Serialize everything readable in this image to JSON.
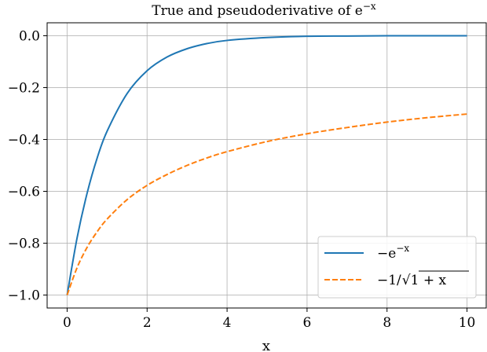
{
  "chart_data": {
    "type": "line",
    "title": "True and pseudoderivative of e",
    "title_superscript": "−x",
    "xlabel": "x",
    "ylabel": "",
    "xlim": [
      -0.5,
      10.5
    ],
    "ylim": [
      -1.05,
      0.05
    ],
    "grid": true,
    "legend_position": "lower right",
    "x_ticks": [
      0,
      2,
      4,
      6,
      8,
      10
    ],
    "x_tick_labels": [
      "0",
      "2",
      "4",
      "6",
      "8",
      "10"
    ],
    "y_ticks": [
      0.0,
      -0.2,
      -0.4,
      -0.6,
      -0.8,
      -1.0
    ],
    "y_tick_labels": [
      "0.0",
      "−0.2",
      "−0.4",
      "−0.6",
      "−0.8",
      "−1.0"
    ],
    "series": [
      {
        "name": "−e^{−x}",
        "legend_base": "−e",
        "legend_sup": "−x",
        "color": "#1f77b4",
        "style": "solid",
        "x": [
          0,
          0.25,
          0.5,
          0.75,
          1,
          1.5,
          2,
          2.5,
          3,
          3.5,
          4,
          5,
          6,
          7,
          8,
          9,
          10
        ],
        "values": [
          -1.0,
          -0.779,
          -0.607,
          -0.472,
          -0.368,
          -0.223,
          -0.135,
          -0.082,
          -0.05,
          -0.03,
          -0.018,
          -0.007,
          -0.002,
          -0.001,
          0.0,
          0.0,
          0.0
        ]
      },
      {
        "name": "−1/√(1+x)",
        "legend_pre": "−1/",
        "legend_sqrt": "1 + x",
        "color": "#ff7f0e",
        "style": "dashed",
        "x": [
          0,
          0.25,
          0.5,
          0.75,
          1,
          1.5,
          2,
          2.5,
          3,
          3.5,
          4,
          5,
          6,
          7,
          8,
          9,
          10
        ],
        "values": [
          -1.0,
          -0.894,
          -0.816,
          -0.756,
          -0.707,
          -0.632,
          -0.577,
          -0.535,
          -0.5,
          -0.471,
          -0.447,
          -0.408,
          -0.378,
          -0.354,
          -0.333,
          -0.316,
          -0.302
        ]
      }
    ]
  }
}
